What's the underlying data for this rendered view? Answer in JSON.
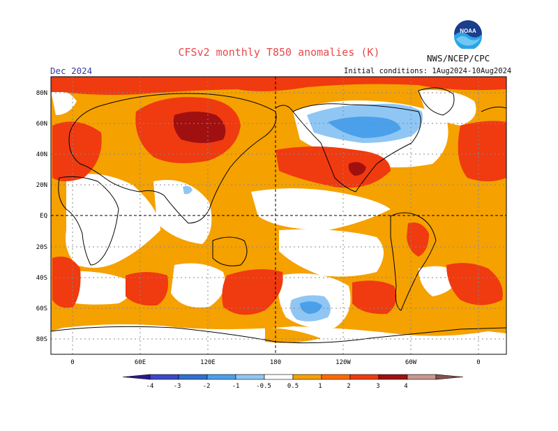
{
  "header": {
    "title": "CFSv2 monthly T850 anomalies (K)",
    "organization": "NWS/NCEP/CPC",
    "period": "Dec 2024",
    "initial_conditions": "Initial conditions: 1Aug2024-10Aug2024",
    "logo_text": "NOAA"
  },
  "axes": {
    "lat_labels": [
      "80N",
      "60N",
      "40N",
      "20N",
      "EQ",
      "20S",
      "40S",
      "60S",
      "80S"
    ],
    "lon_labels": [
      "0",
      "60E",
      "120E",
      "180",
      "120W",
      "60W",
      "0"
    ]
  },
  "colorbar": {
    "tick_labels": [
      "-4",
      "-3",
      "-2",
      "-1",
      "-0.5",
      "0.5",
      "1",
      "2",
      "3",
      "4"
    ],
    "bins": [
      {
        "color": "#2a1a8c"
      },
      {
        "color": "#3b48c8"
      },
      {
        "color": "#2f70d0"
      },
      {
        "color": "#4aa0ea"
      },
      {
        "color": "#8fc6f4"
      },
      {
        "color": "#ffffff"
      },
      {
        "color": "#f5a100"
      },
      {
        "color": "#ff6a00"
      },
      {
        "color": "#f03a10"
      },
      {
        "color": "#a01010"
      },
      {
        "color": "#c89890"
      },
      {
        "color": "#8b5050"
      }
    ]
  },
  "colors": {
    "weak_warm": "#f5a100",
    "moderate_warm": "#ff6a00",
    "strong_warm": "#f03a10",
    "very_strong_warm": "#a01010",
    "weak_cold": "#8fc6f4",
    "moderate_cold": "#4aa0ea",
    "strong_cold": "#2f70d0"
  }
}
